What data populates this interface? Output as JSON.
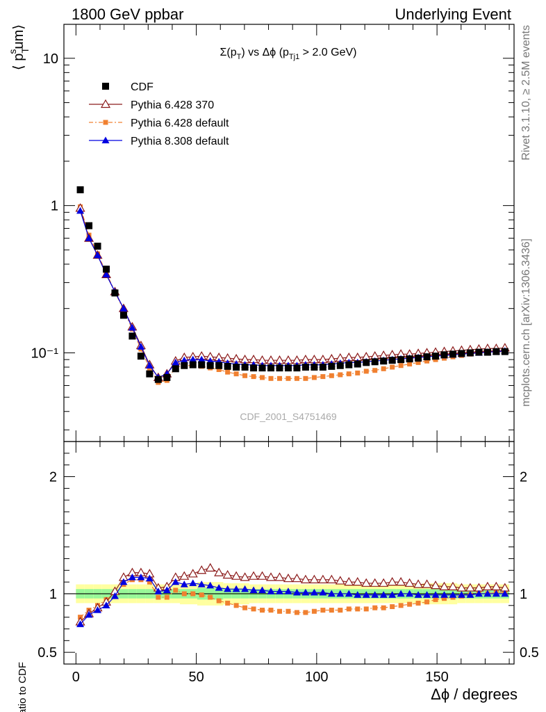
{
  "header": {
    "left": "1800 GeV ppbar",
    "right": "Underlying Event",
    "side_top": "Rivet 3.1.10, ≥ 2.5M events",
    "side_bottom": "mcplots.cern.ch [arXiv:1306.3436]",
    "watermark": "CDF_2001_S4751469"
  },
  "chart_data": {
    "type": "scatter",
    "title": "Σ(pT) vs Δϕ (pTj1 > 2.0 GeV)",
    "xlabel": "Δϕ / degrees",
    "ylabel": "⟨ pT sum ⟩",
    "ratio_ylabel": "Ratio to CDF",
    "xlim": [
      -5,
      182
    ],
    "ylim": [
      0.025,
      17
    ],
    "yscale": "log",
    "ratio_ylim": [
      0.4,
      2.3
    ],
    "xticks": [
      0,
      50,
      100,
      150
    ],
    "yticks": [
      {
        "value": 10,
        "label": "10"
      },
      {
        "value": 1,
        "label": "1"
      },
      {
        "value": 0.1,
        "label": "10⁻¹"
      }
    ],
    "ratio_yticks": [
      {
        "value": 2,
        "label": "2"
      },
      {
        "value": 1,
        "label": "1"
      },
      {
        "value": 0.5,
        "label": "0.5"
      }
    ],
    "legend_position": "top-left",
    "x": [
      1.8,
      5.4,
      9,
      12.6,
      16.2,
      19.8,
      23.4,
      27,
      30.6,
      34.2,
      37.8,
      41.4,
      45,
      48.6,
      52.2,
      55.8,
      59.4,
      63,
      66.6,
      70.2,
      73.8,
      77.4,
      81,
      84.6,
      88.2,
      91.8,
      95.4,
      99,
      102.6,
      106.2,
      109.8,
      113.4,
      117,
      120.6,
      124.2,
      127.8,
      131.4,
      135,
      138.6,
      142.2,
      145.8,
      149.4,
      153,
      156.6,
      160.2,
      163.8,
      167.4,
      171,
      174.6,
      178.2
    ],
    "series": [
      {
        "name": "CDF",
        "marker": "square",
        "color": "#000000",
        "values": [
          1.28,
          0.73,
          0.53,
          0.37,
          0.255,
          0.18,
          0.13,
          0.095,
          0.072,
          0.066,
          0.068,
          0.078,
          0.082,
          0.083,
          0.083,
          0.082,
          0.082,
          0.081,
          0.08,
          0.08,
          0.079,
          0.079,
          0.079,
          0.079,
          0.079,
          0.079,
          0.08,
          0.08,
          0.08,
          0.081,
          0.082,
          0.083,
          0.084,
          0.086,
          0.087,
          0.088,
          0.089,
          0.09,
          0.091,
          0.092,
          0.094,
          0.095,
          0.097,
          0.098,
          0.099,
          0.1,
          0.101,
          0.101,
          0.102,
          0.102
        ],
        "ratio_values": [
          1,
          1,
          1,
          1,
          1,
          1,
          1,
          1,
          1,
          1,
          1,
          1,
          1,
          1,
          1,
          1,
          1,
          1,
          1,
          1,
          1,
          1,
          1,
          1,
          1,
          1,
          1,
          1,
          1,
          1,
          1,
          1,
          1,
          1,
          1,
          1,
          1,
          1,
          1,
          1,
          1,
          1,
          1,
          1,
          1,
          1,
          1,
          1,
          1,
          1
        ]
      },
      {
        "name": "Pythia 6.428 370",
        "marker": "open-triangle",
        "color": "#8b1a1a",
        "line": "solid",
        "values": [
          0.96,
          0.6,
          0.46,
          0.34,
          0.26,
          0.2,
          0.15,
          0.112,
          0.083,
          0.068,
          0.072,
          0.088,
          0.093,
          0.094,
          0.095,
          0.094,
          0.093,
          0.092,
          0.091,
          0.09,
          0.09,
          0.089,
          0.089,
          0.089,
          0.089,
          0.089,
          0.09,
          0.09,
          0.09,
          0.091,
          0.092,
          0.093,
          0.093,
          0.094,
          0.095,
          0.096,
          0.097,
          0.098,
          0.098,
          0.099,
          0.1,
          0.101,
          0.102,
          0.103,
          0.104,
          0.105,
          0.106,
          0.107,
          0.107,
          0.108
        ],
        "ratio_values": [
          0.76,
          0.83,
          0.88,
          0.93,
          1.02,
          1.14,
          1.18,
          1.18,
          1.17,
          1.05,
          1.06,
          1.14,
          1.15,
          1.17,
          1.2,
          1.22,
          1.18,
          1.16,
          1.15,
          1.14,
          1.15,
          1.15,
          1.14,
          1.14,
          1.13,
          1.13,
          1.12,
          1.12,
          1.12,
          1.12,
          1.11,
          1.1,
          1.1,
          1.09,
          1.09,
          1.09,
          1.1,
          1.1,
          1.09,
          1.08,
          1.08,
          1.07,
          1.06,
          1.06,
          1.05,
          1.05,
          1.05,
          1.06,
          1.06,
          1.05
        ]
      },
      {
        "name": "Pythia 6.428 default",
        "marker": "filled-square-small",
        "color": "#f08030",
        "line": "dash-dot",
        "values": [
          0.98,
          0.63,
          0.47,
          0.35,
          0.26,
          0.195,
          0.145,
          0.106,
          0.079,
          0.063,
          0.065,
          0.08,
          0.082,
          0.082,
          0.081,
          0.079,
          0.077,
          0.074,
          0.072,
          0.07,
          0.069,
          0.068,
          0.067,
          0.067,
          0.067,
          0.067,
          0.067,
          0.068,
          0.069,
          0.07,
          0.071,
          0.072,
          0.073,
          0.075,
          0.076,
          0.078,
          0.08,
          0.082,
          0.084,
          0.086,
          0.088,
          0.09,
          0.092,
          0.094,
          0.096,
          0.098,
          0.1,
          0.101,
          0.102,
          0.103
        ],
        "ratio_values": [
          0.8,
          0.86,
          0.9,
          0.95,
          1.01,
          1.08,
          1.12,
          1.12,
          1.1,
          0.97,
          0.97,
          1.03,
          1,
          1,
          0.99,
          0.97,
          0.94,
          0.92,
          0.9,
          0.88,
          0.87,
          0.86,
          0.86,
          0.85,
          0.85,
          0.84,
          0.84,
          0.85,
          0.86,
          0.86,
          0.86,
          0.87,
          0.87,
          0.87,
          0.88,
          0.88,
          0.89,
          0.9,
          0.91,
          0.92,
          0.93,
          0.95,
          0.96,
          0.97,
          0.98,
          0.99,
          1,
          1,
          1.01,
          1.01
        ]
      },
      {
        "name": "Pythia 8.308 default",
        "marker": "filled-triangle",
        "color": "#0000e0",
        "line": "solid",
        "values": [
          0.92,
          0.6,
          0.46,
          0.34,
          0.26,
          0.2,
          0.148,
          0.11,
          0.082,
          0.068,
          0.072,
          0.086,
          0.089,
          0.09,
          0.09,
          0.088,
          0.087,
          0.085,
          0.084,
          0.083,
          0.083,
          0.082,
          0.082,
          0.082,
          0.082,
          0.082,
          0.083,
          0.083,
          0.083,
          0.084,
          0.085,
          0.086,
          0.086,
          0.087,
          0.088,
          0.089,
          0.09,
          0.091,
          0.092,
          0.093,
          0.094,
          0.095,
          0.096,
          0.097,
          0.098,
          0.099,
          0.1,
          0.101,
          0.102,
          0.103
        ],
        "ratio_values": [
          0.74,
          0.82,
          0.86,
          0.9,
          0.98,
          1.1,
          1.14,
          1.14,
          1.13,
          1.02,
          1.03,
          1.1,
          1.08,
          1.09,
          1.08,
          1.07,
          1.05,
          1.04,
          1.04,
          1.04,
          1.03,
          1.03,
          1.02,
          1.02,
          1.02,
          1.01,
          1.01,
          1.01,
          1.01,
          1,
          1,
          1,
          0.99,
          0.99,
          0.99,
          0.99,
          0.99,
          1,
          1,
          0.99,
          0.99,
          0.99,
          0.99,
          0.99,
          0.99,
          0.99,
          1,
          1,
          1,
          1
        ]
      }
    ],
    "uncertainty_band": {
      "inner_color": "#98f898",
      "outer_color": "#ffffa0",
      "inner_halfwidth": [
        0.04,
        0.04,
        0.04,
        0.04,
        0.04,
        0.04,
        0.04,
        0.04,
        0.04,
        0.04,
        0.04,
        0.04,
        0.04,
        0.04,
        0.05,
        0.05,
        0.05,
        0.04,
        0.04,
        0.04,
        0.04,
        0.04,
        0.04,
        0.04,
        0.04,
        0.04,
        0.04,
        0.04,
        0.04,
        0.04,
        0.04,
        0.04,
        0.04,
        0.04,
        0.04,
        0.04,
        0.04,
        0.04,
        0.04,
        0.04,
        0.04,
        0.04,
        0.04,
        0.04,
        0.04,
        0.04,
        0.04,
        0.04,
        0.04,
        0.04
      ],
      "outer_halfwidth": [
        0.08,
        0.08,
        0.08,
        0.08,
        0.08,
        0.08,
        0.08,
        0.08,
        0.08,
        0.08,
        0.08,
        0.08,
        0.09,
        0.09,
        0.1,
        0.1,
        0.1,
        0.09,
        0.09,
        0.09,
        0.08,
        0.08,
        0.08,
        0.08,
        0.08,
        0.08,
        0.08,
        0.08,
        0.08,
        0.08,
        0.08,
        0.08,
        0.08,
        0.08,
        0.08,
        0.08,
        0.08,
        0.08,
        0.08,
        0.08,
        0.09,
        0.09,
        0.09,
        0.09,
        0.08,
        0.08,
        0.08,
        0.08,
        0.08,
        0.08
      ]
    }
  }
}
